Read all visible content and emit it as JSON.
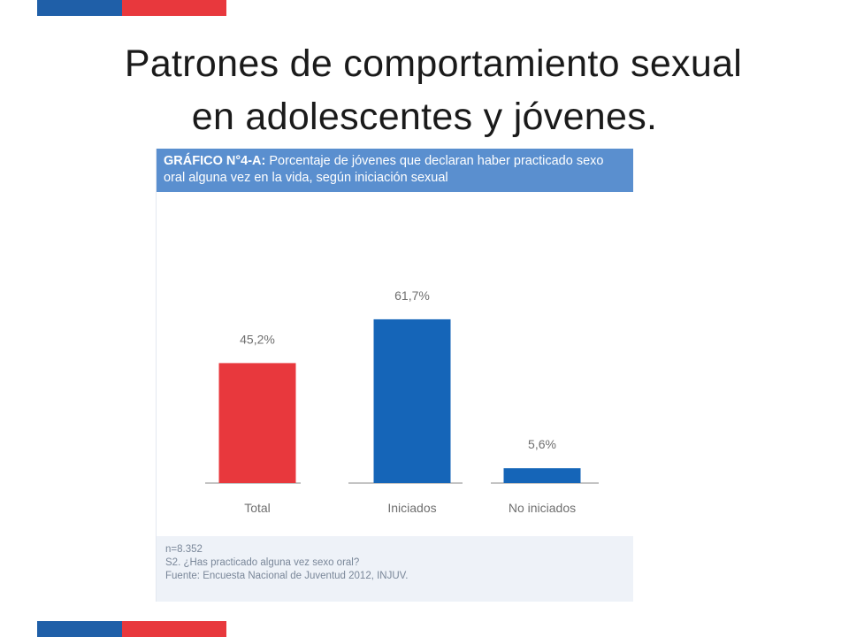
{
  "slide": {
    "title_line1": "Patrones de comportamiento sexual",
    "title_line2": "en adolescentes y jóvenes."
  },
  "colors": {
    "flag_blue": "#1f5fa8",
    "flag_red": "#e8383d",
    "header_bg": "#5a8fcf",
    "bar_red": "#e8383d",
    "bar_blue": "#1565b8"
  },
  "figure": {
    "header_label": "GRÁFICO N°4-A:",
    "header_text": " Porcentaje de jóvenes que declaran haber practicado sexo oral alguna vez en la vida, según iniciación sexual",
    "notes": [
      "n=8.352",
      "S2. ¿Has practicado alguna vez sexo oral?",
      "Fuente: Encuesta Nacional de Juventud 2012, INJUV."
    ]
  },
  "chart_data": {
    "type": "bar",
    "categories": [
      "Total",
      "Iniciados",
      "No iniciados"
    ],
    "values": [
      45.2,
      61.7,
      5.6
    ],
    "data_labels": [
      "45,2%",
      "61,7%",
      "5,6%"
    ],
    "bar_colors": [
      "#e8383d",
      "#1565b8",
      "#1565b8"
    ],
    "grid": false
  }
}
